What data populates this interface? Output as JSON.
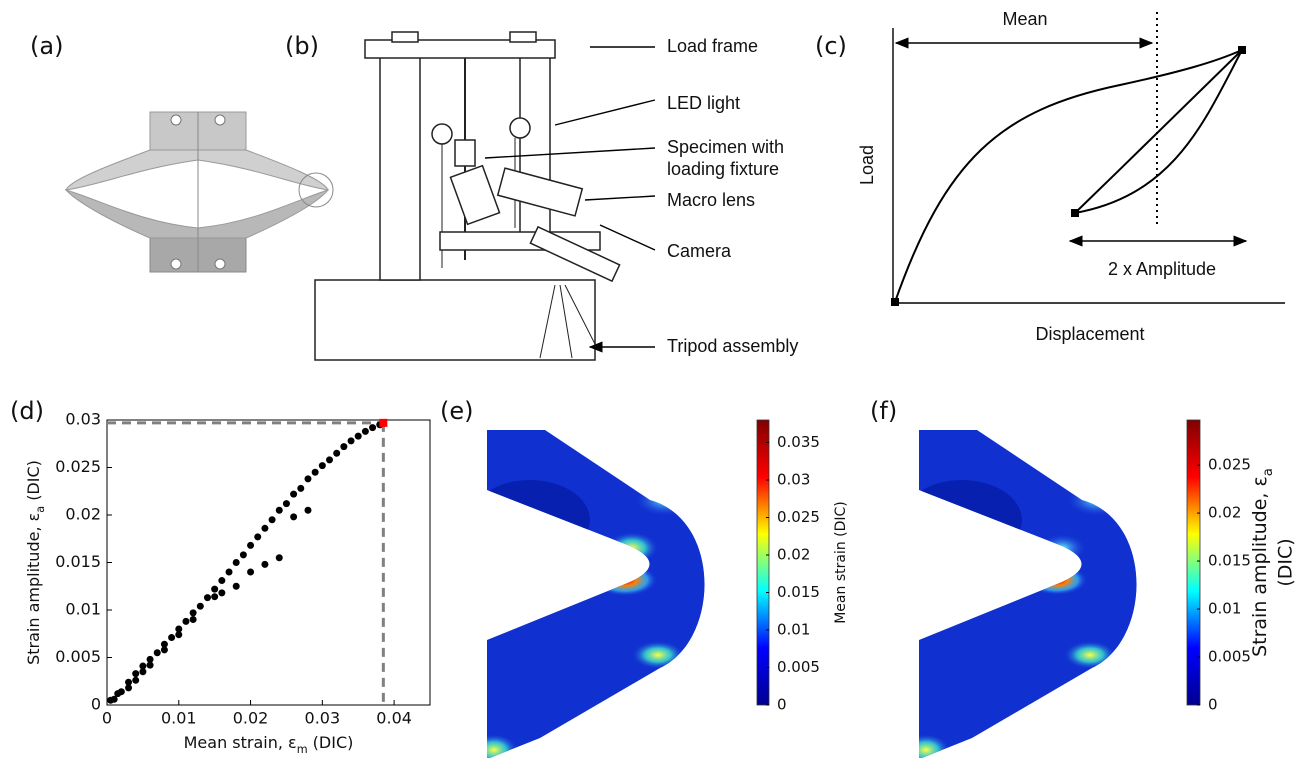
{
  "panels": {
    "a": {
      "label": "(a)"
    },
    "b": {
      "label": "(b)",
      "callouts": [
        "Load frame",
        "LED light",
        "Specimen with",
        "loading fixture",
        "Macro lens",
        "Camera",
        "Tripod assembly"
      ]
    },
    "c": {
      "label": "(c)",
      "mean": "Mean",
      "amplitude": "2 x Amplitude",
      "x_label": "Displacement",
      "y_label": "Load"
    }
  },
  "chart_data": [
    {
      "type": "scatter",
      "panel_label": "(d)",
      "x_label": {
        "before": "Mean strain, ε",
        "sub": "m",
        "after": " (DIC)"
      },
      "y_label": {
        "before": "Strain amplitude, ε",
        "sub": "a",
        "after": " (DIC)"
      },
      "xlim": [
        0,
        0.045
      ],
      "xticks": [
        0,
        0.01,
        0.02,
        0.03,
        0.04
      ],
      "ylim": [
        0,
        0.03
      ],
      "yticks": [
        0,
        0.005,
        0.01,
        0.015,
        0.02,
        0.025,
        0.03
      ],
      "color": "#000000",
      "x": [
        0.0005,
        0.001,
        0.0015,
        0.002,
        0.003,
        0.003,
        0.004,
        0.004,
        0.005,
        0.005,
        0.006,
        0.006,
        0.007,
        0.008,
        0.008,
        0.009,
        0.01,
        0.01,
        0.011,
        0.012,
        0.012,
        0.013,
        0.014,
        0.015,
        0.015,
        0.016,
        0.016,
        0.017,
        0.018,
        0.018,
        0.019,
        0.02,
        0.02,
        0.021,
        0.022,
        0.022,
        0.023,
        0.024,
        0.024,
        0.025,
        0.026,
        0.026,
        0.027,
        0.028,
        0.028,
        0.029,
        0.03,
        0.031,
        0.032,
        0.033,
        0.034,
        0.035,
        0.036,
        0.037,
        0.038
      ],
      "values": [
        0.0005,
        0.0006,
        0.0012,
        0.0014,
        0.0024,
        0.0018,
        0.0033,
        0.0026,
        0.0041,
        0.0035,
        0.0048,
        0.0042,
        0.0055,
        0.0064,
        0.0058,
        0.0071,
        0.008,
        0.0074,
        0.0088,
        0.0097,
        0.009,
        0.0104,
        0.0113,
        0.0122,
        0.0114,
        0.0131,
        0.0118,
        0.014,
        0.015,
        0.0125,
        0.0158,
        0.0168,
        0.014,
        0.0177,
        0.0186,
        0.0148,
        0.0195,
        0.0205,
        0.0155,
        0.0212,
        0.0222,
        0.0198,
        0.0228,
        0.0238,
        0.0205,
        0.0245,
        0.0252,
        0.0258,
        0.0265,
        0.0272,
        0.0278,
        0.0283,
        0.0288,
        0.0292,
        0.0295
      ],
      "marker": {
        "x": 0.0385,
        "y": 0.0297,
        "color": "#ff0000"
      }
    },
    {
      "type": "colorbar",
      "panel_label": "(e)",
      "label": {
        "before": "Mean strain (DIC)"
      },
      "clim": [
        0,
        0.038
      ],
      "ticks": [
        0,
        0.005,
        0.01,
        0.015,
        0.02,
        0.025,
        0.03,
        0.035
      ],
      "colormap": [
        "#00008f",
        "#0000ff",
        "#00ffff",
        "#ffff00",
        "#ff0000",
        "#800000"
      ]
    },
    {
      "type": "colorbar",
      "panel_label": "(f)",
      "label": {
        "before": "Strain amplitude, ε",
        "sub": "a",
        "line2": "(DIC)"
      },
      "clim": [
        0,
        0.0297
      ],
      "ticks": [
        0,
        0.005,
        0.01,
        0.015,
        0.02,
        0.025
      ],
      "colormap": [
        "#00008f",
        "#0000ff",
        "#00ffff",
        "#ffff00",
        "#ff0000",
        "#800000"
      ]
    }
  ]
}
